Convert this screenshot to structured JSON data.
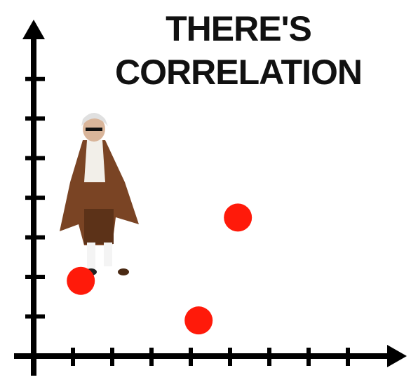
{
  "chart_data": {
    "type": "scatter",
    "title": [
      "THERE'S",
      "CORRELATION"
    ],
    "x": [
      1.2,
      4.2,
      5.2
    ],
    "values": [
      1.9,
      0.9,
      3.5
    ],
    "color": "#ff1a0a",
    "xlim": [
      0,
      9.5
    ],
    "ylim": [
      0,
      8.5
    ],
    "xticks": [
      1,
      2,
      3,
      4,
      5,
      6,
      7,
      8
    ],
    "yticks": [
      1,
      2,
      3,
      4,
      5,
      6,
      7
    ]
  }
}
